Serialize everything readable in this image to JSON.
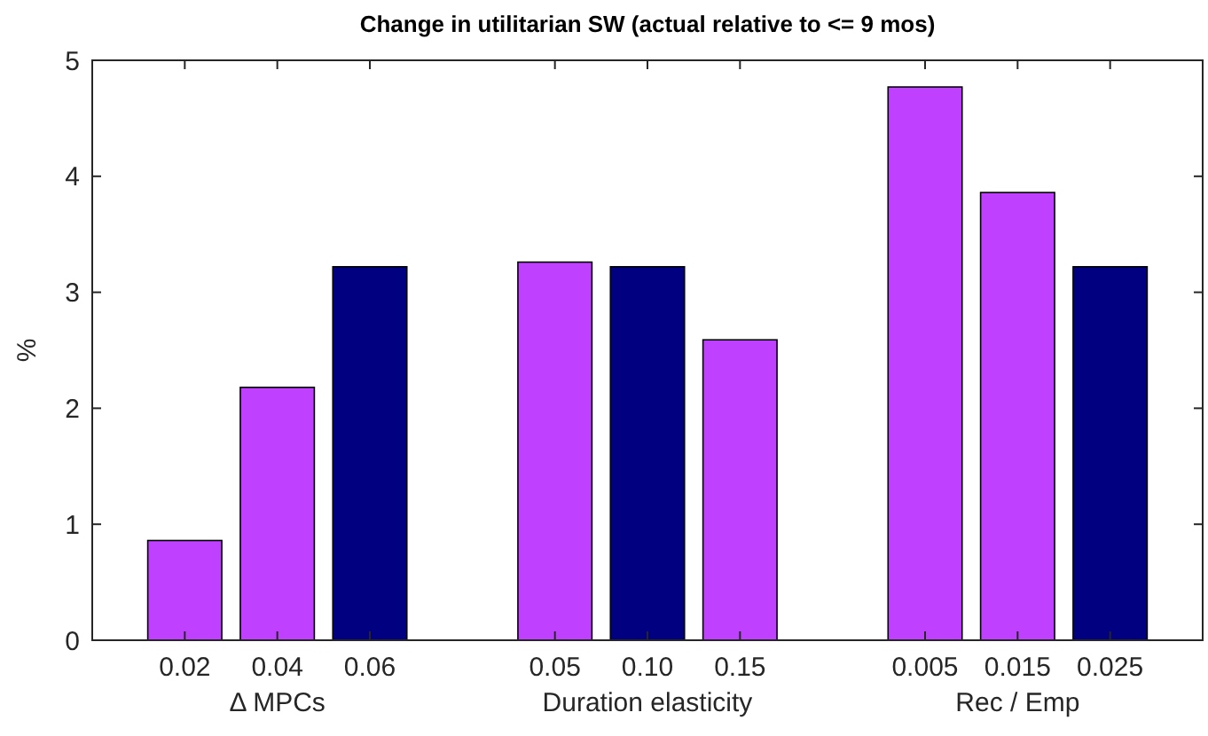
{
  "chart_data": {
    "type": "bar",
    "title": "Change in utilitarian SW (actual relative to <= 9 mos)",
    "ylabel": "%",
    "categories": [
      "0.02",
      "0.04",
      "0.06",
      null,
      "0.05",
      "0.10",
      "0.15",
      null,
      "0.005",
      "0.015",
      "0.025"
    ],
    "values": [
      0.86,
      2.18,
      3.22,
      0,
      3.26,
      3.22,
      2.59,
      0,
      4.77,
      3.86,
      3.22
    ],
    "colors": [
      "#bf40ff",
      "#bf40ff",
      "#000080",
      "#bf40ff",
      "#bf40ff",
      "#000080",
      "#bf40ff",
      "#bf40ff",
      "#bf40ff",
      "#bf40ff",
      "#000080"
    ],
    "ylim": [
      0,
      5
    ],
    "yticks": [
      0,
      1,
      2,
      3,
      4,
      5
    ],
    "grid": false,
    "annotations": [
      "Δ MPCs",
      "Duration elasticity",
      "Rec / Emp"
    ]
  }
}
